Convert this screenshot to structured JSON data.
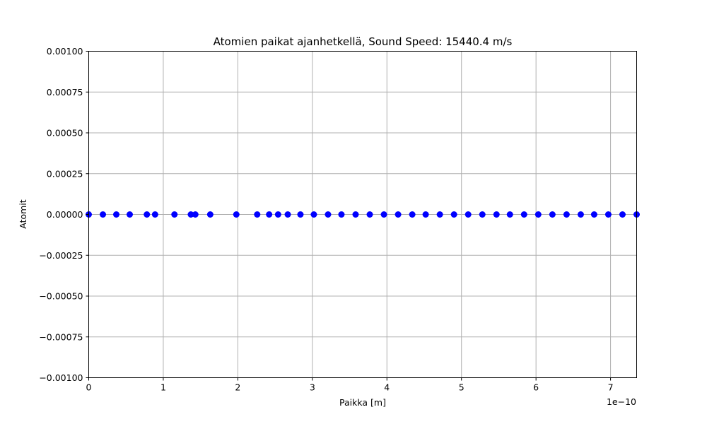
{
  "chart_data": {
    "type": "scatter",
    "title": "Atomien paikat ajanhetkellä, Sound Speed: 15440.4 m/s",
    "xlabel": "Paikka [m]",
    "ylabel": "Atomit",
    "x_offset_text": "1e−10",
    "xlim": [
      0,
      7.35
    ],
    "ylim": [
      -0.001,
      0.001
    ],
    "x_ticks": [
      0,
      1,
      2,
      3,
      4,
      5,
      6,
      7
    ],
    "x_tick_labels": [
      "0",
      "1",
      "2",
      "3",
      "4",
      "5",
      "6",
      "7"
    ],
    "y_ticks": [
      -0.001,
      -0.00075,
      -0.0005,
      -0.00025,
      0,
      0.00025,
      0.0005,
      0.00075,
      0.001
    ],
    "y_tick_labels": [
      "−0.00100",
      "−0.00075",
      "−0.00050",
      "−0.00025",
      "0.00000",
      "0.00025",
      "0.00050",
      "0.00075",
      "0.00100"
    ],
    "grid": true,
    "marker_color": "#0000ff",
    "x": [
      0,
      0.19,
      0.37,
      0.55,
      0.78,
      0.89,
      1.15,
      1.37,
      1.43,
      1.63,
      1.98,
      2.26,
      2.42,
      2.54,
      2.67,
      2.84,
      3.02,
      3.21,
      3.39,
      3.58,
      3.77,
      3.96,
      4.15,
      4.34,
      4.52,
      4.71,
      4.9,
      5.09,
      5.28,
      5.47,
      5.65,
      5.84,
      6.03,
      6.22,
      6.41,
      6.6,
      6.78,
      6.97,
      7.16,
      7.35
    ],
    "y": [
      0,
      0,
      0,
      0,
      0,
      0,
      0,
      0,
      0,
      0,
      0,
      0,
      0,
      0,
      0,
      0,
      0,
      0,
      0,
      0,
      0,
      0,
      0,
      0,
      0,
      0,
      0,
      0,
      0,
      0,
      0,
      0,
      0,
      0,
      0,
      0,
      0,
      0,
      0,
      0
    ]
  }
}
